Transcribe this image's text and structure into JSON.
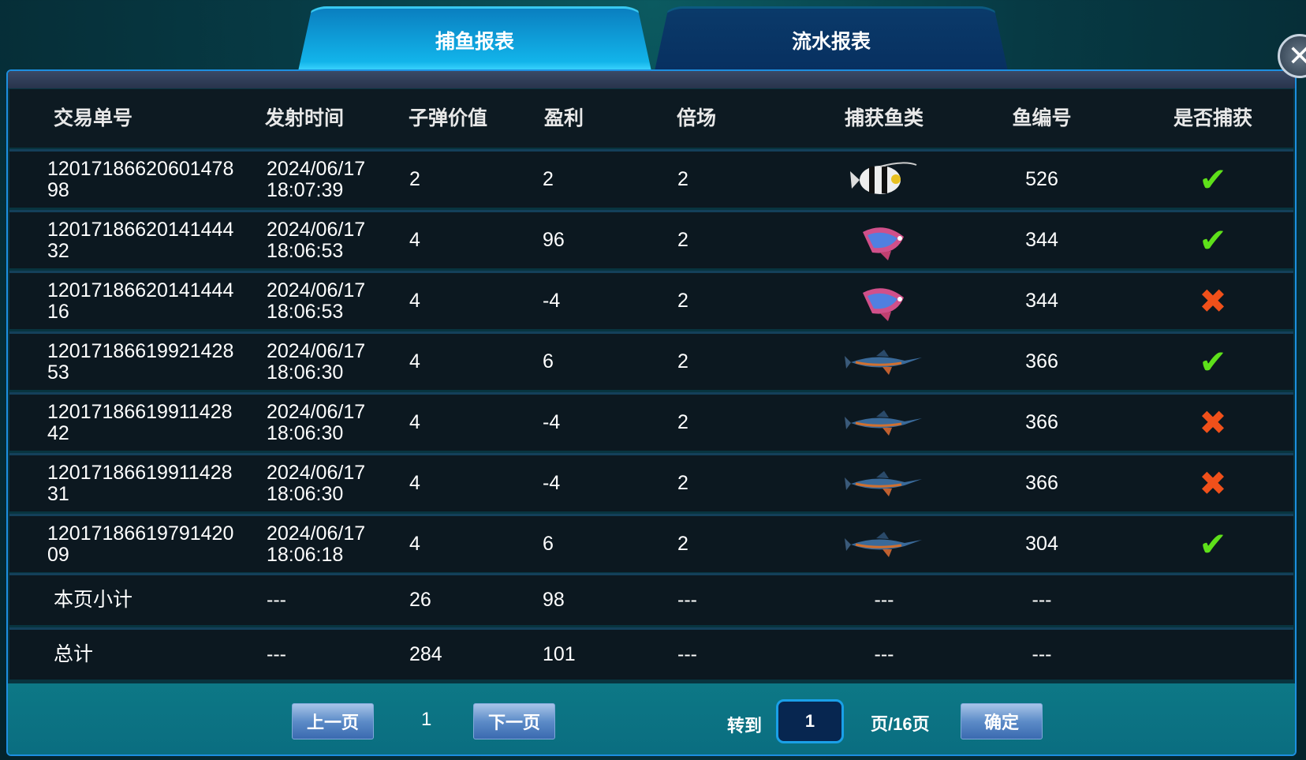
{
  "tabs": [
    {
      "label": "捕鱼报表",
      "active": true
    },
    {
      "label": "流水报表",
      "active": false
    }
  ],
  "columns": [
    "交易单号",
    "发射时间",
    "子弹价值",
    "盈利",
    "倍场",
    "捕获鱼类",
    "鱼编号",
    "是否捕获"
  ],
  "rows": [
    {
      "id1": "12017186620601478",
      "id2": "98",
      "date": "2024/06/17",
      "time": "18:07:39",
      "bullet": "2",
      "profit": "2",
      "mult": "2",
      "fish": "striped-angelfish-icon",
      "fish_no": "526",
      "caught": true
    },
    {
      "id1": "12017186620141444",
      "id2": "32",
      "date": "2024/06/17",
      "time": "18:06:53",
      "bullet": "4",
      "profit": "96",
      "mult": "2",
      "fish": "flying-fish-icon",
      "fish_no": "344",
      "caught": true
    },
    {
      "id1": "12017186620141444",
      "id2": "16",
      "date": "2024/06/17",
      "time": "18:06:53",
      "bullet": "4",
      "profit": "-4",
      "mult": "2",
      "fish": "flying-fish-icon",
      "fish_no": "344",
      "caught": false
    },
    {
      "id1": "12017186619921428",
      "id2": "53",
      "date": "2024/06/17",
      "time": "18:06:30",
      "bullet": "4",
      "profit": "6",
      "mult": "2",
      "fish": "swordfish-icon",
      "fish_no": "366",
      "caught": true
    },
    {
      "id1": "12017186619911428",
      "id2": "42",
      "date": "2024/06/17",
      "time": "18:06:30",
      "bullet": "4",
      "profit": "-4",
      "mult": "2",
      "fish": "swordfish-icon",
      "fish_no": "366",
      "caught": false
    },
    {
      "id1": "12017186619911428",
      "id2": "31",
      "date": "2024/06/17",
      "time": "18:06:30",
      "bullet": "4",
      "profit": "-4",
      "mult": "2",
      "fish": "swordfish-icon",
      "fish_no": "366",
      "caught": false
    },
    {
      "id1": "12017186619791420",
      "id2": "09",
      "date": "2024/06/17",
      "time": "18:06:18",
      "bullet": "4",
      "profit": "6",
      "mult": "2",
      "fish": "swordfish-icon",
      "fish_no": "304",
      "caught": true
    }
  ],
  "subtotal": {
    "label": "本页小计",
    "time": "---",
    "bullet": "26",
    "profit": "98",
    "mult": "---",
    "fish": "---",
    "fish_no": "---"
  },
  "total": {
    "label": "总计",
    "time": "---",
    "bullet": "284",
    "profit": "101",
    "mult": "---",
    "fish": "---",
    "fish_no": "---"
  },
  "pager": {
    "prev": "上一页",
    "current": "1",
    "next": "下一页",
    "goto": "转到",
    "input": "1",
    "pages": "页/16页",
    "confirm": "确定"
  },
  "colors": {
    "check": "#5ee01a",
    "cross": "#f0501a",
    "active_tab": "#12b4ea"
  }
}
